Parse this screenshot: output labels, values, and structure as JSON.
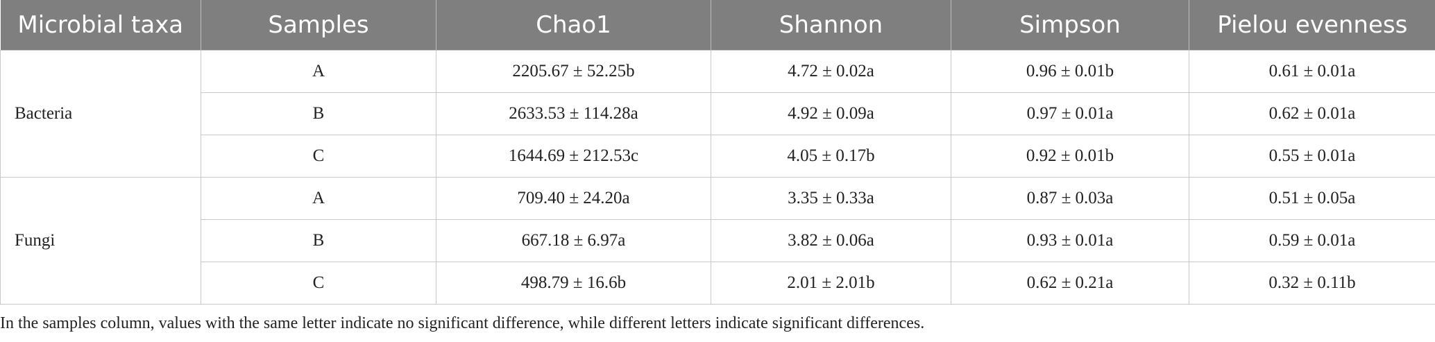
{
  "table": {
    "header": [
      "Microbial taxa",
      "Samples",
      "Chao1",
      "Shannon",
      "Simpson",
      "Pielou evenness"
    ],
    "groups": [
      {
        "taxon": "Bacteria",
        "rows": [
          [
            "A",
            "2205.67 ± 52.25b",
            "4.72 ± 0.02a",
            "0.96 ± 0.01b",
            "0.61 ± 0.01a"
          ],
          [
            "B",
            "2633.53 ± 114.28a",
            "4.92 ± 0.09a",
            "0.97 ± 0.01a",
            "0.62 ± 0.01a"
          ],
          [
            "C",
            "1644.69 ± 212.53c",
            "4.05 ± 0.17b",
            "0.92 ± 0.01b",
            "0.55 ± 0.01a"
          ]
        ]
      },
      {
        "taxon": "Fungi",
        "rows": [
          [
            "A",
            "709.40 ± 24.20a",
            "3.35 ± 0.33a",
            "0.87 ± 0.03a",
            "0.51 ± 0.05a"
          ],
          [
            "B",
            "667.18 ± 6.97a",
            "3.82 ± 0.06a",
            "0.93 ± 0.01a",
            "0.59 ± 0.01a"
          ],
          [
            "C",
            "498.79 ± 16.6b",
            "2.01 ± 2.01b",
            "0.62 ± 0.21a",
            "0.32 ± 0.11b"
          ]
        ]
      }
    ]
  },
  "note": "In the samples column, values with the same letter indicate no significant difference, while different letters indicate significant differences."
}
